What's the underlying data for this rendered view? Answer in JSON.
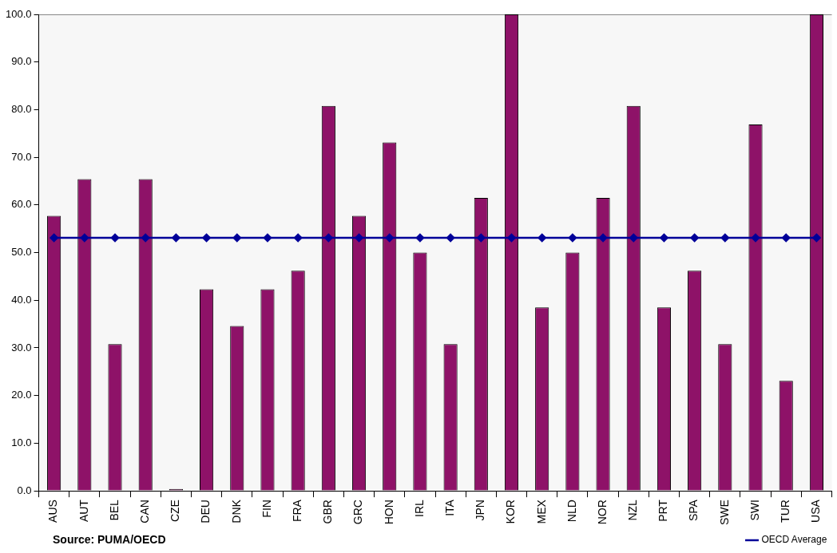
{
  "chart_data": {
    "type": "bar",
    "categories": [
      "AUS",
      "AUT",
      "BEL",
      "CAN",
      "CZE",
      "DEU",
      "DNK",
      "FIN",
      "FRA",
      "GBR",
      "GRC",
      "HON",
      "IRL",
      "ITA",
      "JPN",
      "KOR",
      "MEX",
      "NLD",
      "NOR",
      "NZL",
      "PRT",
      "SPA",
      "SWE",
      "SWI",
      "TUR",
      "USA"
    ],
    "series": [
      {
        "color": "#8e1268",
        "values": [
          57.7,
          65.4,
          30.8,
          65.4,
          0.4,
          42.3,
          34.6,
          42.3,
          46.2,
          80.8,
          57.7,
          73.1,
          50.0,
          30.8,
          61.5,
          100.0,
          38.5,
          50.0,
          61.5,
          80.8,
          38.5,
          46.2,
          30.8,
          76.9,
          23.1,
          100.0
        ]
      },
      {
        "type": "line",
        "name": "OECD Average",
        "color": "#000099",
        "values": [
          53.1,
          53.1,
          53.1,
          53.1,
          53.1,
          53.1,
          53.1,
          53.1,
          53.1,
          53.1,
          53.1,
          53.1,
          53.1,
          53.1,
          53.1,
          53.1,
          53.1,
          53.1,
          53.1,
          53.1,
          53.1,
          53.1,
          53.1,
          53.1,
          53.1,
          53.1
        ],
        "marker": "diamond"
      }
    ],
    "ylim": [
      0,
      100
    ],
    "yticks": [
      {
        "value": 0,
        "label": "0.0"
      },
      {
        "value": 10,
        "label": "10.0"
      },
      {
        "value": 20,
        "label": "20.0"
      },
      {
        "value": 30,
        "label": "30.0"
      },
      {
        "value": 40,
        "label": "40.0"
      },
      {
        "value": 50,
        "label": "50.0"
      },
      {
        "value": 60,
        "label": "60.0"
      },
      {
        "value": 70,
        "label": "70.0"
      },
      {
        "value": 80,
        "label": "80.0"
      },
      {
        "value": 90,
        "label": "90.0"
      },
      {
        "value": 100,
        "label": "100.0"
      }
    ],
    "grid": false,
    "legend": "bottom right",
    "annotations": [
      "Source: PUMA/OECD"
    ]
  }
}
